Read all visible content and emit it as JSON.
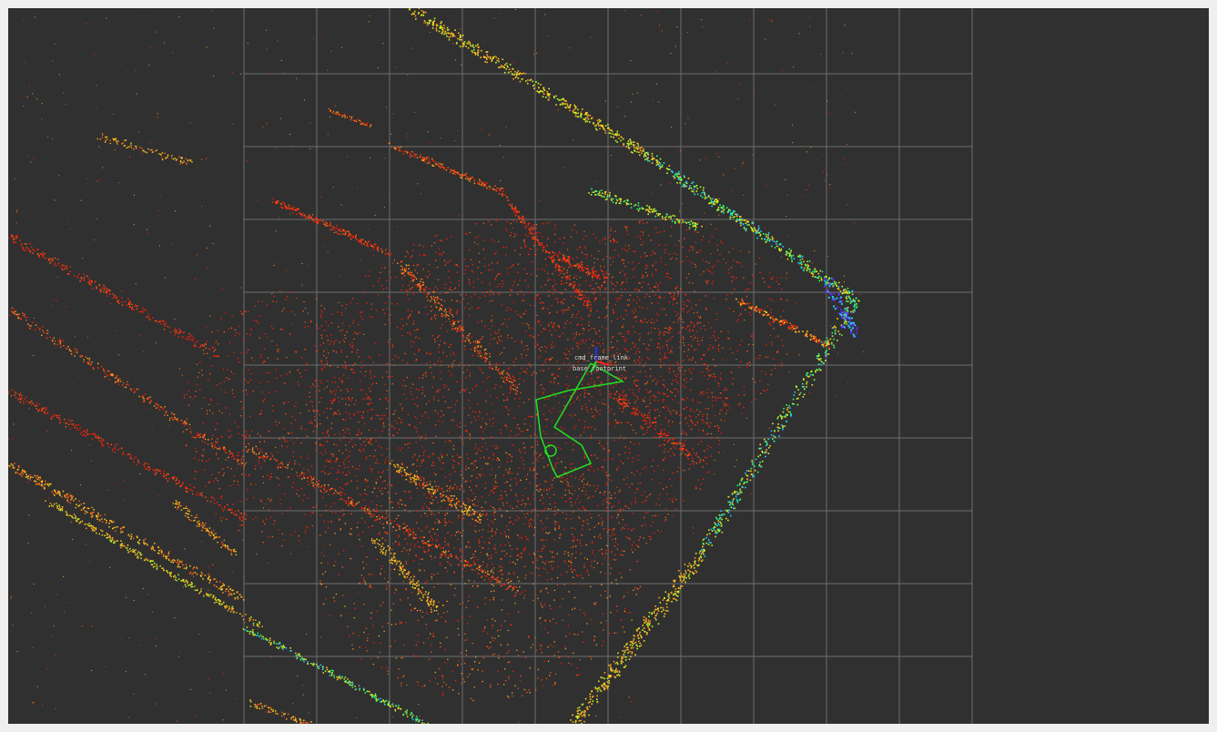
{
  "viewer": {
    "background": "#303030",
    "grid": {
      "enabled": true,
      "color": "#6e6e6e"
    },
    "point_cloud": {
      "color_map": "rainbow by height",
      "colors": [
        "#ff1e0a",
        "#ff5a14",
        "#ffa01e",
        "#ffd21e",
        "#b4ff28",
        "#28ff78",
        "#28c8ff",
        "#6428ff"
      ]
    },
    "trajectory": {
      "color": "#22e022"
    },
    "frame_labels": [
      "cmd_frame_link",
      "base_footprint"
    ]
  }
}
